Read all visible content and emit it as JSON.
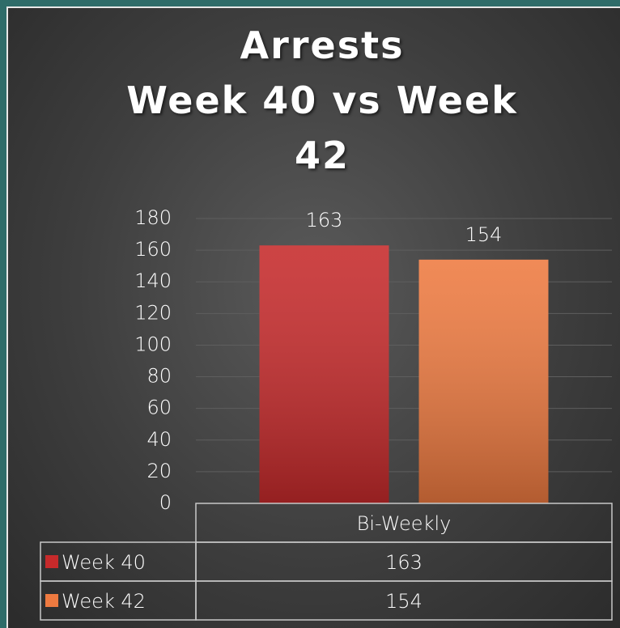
{
  "chart_data": {
    "type": "bar",
    "title": "Arrests\nWeek 40 vs Week 42",
    "categories": [
      "Bi-Weekly"
    ],
    "series": [
      {
        "name": "Week 40",
        "color": "#c62a2b",
        "values": [
          163
        ]
      },
      {
        "name": "Week 42",
        "color": "#ee7a40",
        "values": [
          154
        ]
      }
    ],
    "ylim": [
      0,
      180
    ],
    "yticks": [
      0,
      20,
      40,
      60,
      80,
      100,
      120,
      140,
      160,
      180
    ],
    "grid": true,
    "data_table": true
  }
}
